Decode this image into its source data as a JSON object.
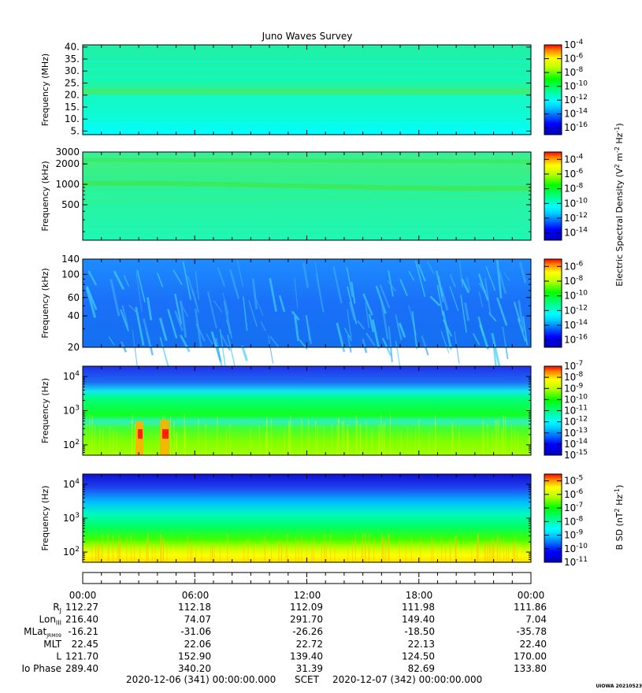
{
  "title": "Juno Waves Survey",
  "watermark": "UIOWA 20210523",
  "chart_data": [
    {
      "type": "heatmap",
      "ylabel": "Frequency (MHz)",
      "yscale": "linear",
      "ylim": [
        3.5,
        40.9
      ],
      "yticks": [
        5,
        10,
        15,
        20,
        25,
        30,
        35,
        40
      ],
      "ytick_labels": [
        "5.",
        "10.",
        "15.",
        "20.",
        "25.",
        "30.",
        "35.",
        "40."
      ],
      "colorbar": {
        "exponents": [
          "-4",
          "-6",
          "-8",
          "-10",
          "-12",
          "-14",
          "-16"
        ],
        "min_exp": -17,
        "max_exp": -4
      }
    },
    {
      "type": "heatmap",
      "ylabel": "Frequency (kHz)",
      "yscale": "log",
      "ylim": [
        150,
        3000
      ],
      "yticks": [
        500,
        1000,
        2000,
        3000
      ],
      "ytick_labels": [
        "500",
        "1000",
        "2000",
        "3000"
      ],
      "colorbar": {
        "exponents": [
          "-4",
          "-6",
          "-8",
          "-10",
          "-12",
          "-14"
        ],
        "min_exp": -15,
        "max_exp": -3
      }
    },
    {
      "type": "heatmap",
      "ylabel": "Frequency (kHz)",
      "yscale": "log",
      "ylim": [
        20,
        140
      ],
      "yticks": [
        20,
        40,
        60,
        100,
        140
      ],
      "ytick_labels": [
        "20",
        "40",
        "60",
        "100",
        "140"
      ],
      "colorbar": {
        "exponents": [
          "-6",
          "-8",
          "-10",
          "-12",
          "-14",
          "-16"
        ],
        "min_exp": -17,
        "max_exp": -5
      }
    },
    {
      "type": "heatmap",
      "ylabel": "Frequency (Hz)",
      "yscale": "log",
      "ylim": [
        50,
        20000
      ],
      "yticks": [
        100,
        1000,
        10000
      ],
      "ytick_bases": [
        "10",
        "10",
        "10"
      ],
      "ytick_exps": [
        "2",
        "3",
        "4"
      ],
      "colorbar": {
        "exponents": [
          "-7",
          "-8",
          "-9",
          "-10",
          "-11",
          "-12",
          "-13",
          "-14",
          "-15"
        ],
        "min_exp": -15,
        "max_exp": -7
      }
    },
    {
      "type": "heatmap",
      "ylabel": "Frequency (Hz)",
      "yscale": "log",
      "ylim": [
        50,
        20000
      ],
      "yticks": [
        100,
        1000,
        10000
      ],
      "ytick_bases": [
        "10",
        "10",
        "10"
      ],
      "ytick_exps": [
        "2",
        "3",
        "4"
      ],
      "colorbar": {
        "exponents": [
          "-5",
          "-6",
          "-7",
          "-8",
          "-9",
          "-10",
          "-11"
        ],
        "min_exp": -11,
        "max_exp": -4.5
      }
    }
  ],
  "colorbar_labels": {
    "electric": "Electric Spectral Density (V",
    "electric_tail": " m",
    "electric_end": " Hz",
    "electric_close": ")",
    "magnetic": "B SD (nT",
    "magnetic_tail": " Hz",
    "magnetic_close": ")",
    "sup2": "2",
    "supm2": "-2",
    "supm1": "-1"
  },
  "time_axis": {
    "labels": [
      "00:00",
      "06:00",
      "12:00",
      "18:00",
      "00:00"
    ],
    "ephemeris": [
      {
        "label": "R",
        "sub": "J",
        "values": [
          "112.27",
          "112.18",
          "112.09",
          "111.98",
          "111.86"
        ]
      },
      {
        "label": "Lon",
        "sub": "III",
        "values": [
          "216.40",
          "74.07",
          "291.70",
          "149.40",
          "7.04"
        ]
      },
      {
        "label": "MLat",
        "sub": "JRM09",
        "values": [
          "-16.21",
          "-31.06",
          "-26.26",
          "-18.50",
          "-35.78"
        ]
      },
      {
        "label": "MLT",
        "sub": "",
        "values": [
          "22.45",
          "22.06",
          "22.72",
          "22.13",
          "22.40"
        ]
      },
      {
        "label": "L",
        "sub": "",
        "values": [
          "121.70",
          "152.90",
          "139.40",
          "124.50",
          "170.00"
        ]
      },
      {
        "label": "Io Phase",
        "sub": "",
        "values": [
          "289.40",
          "340.20",
          "31.39",
          "82.69",
          "133.80"
        ]
      }
    ],
    "start": "2020-12-06 (341) 00:00:00.000",
    "scet": "SCET",
    "end": "2020-12-07 (342) 00:00:00.000"
  }
}
